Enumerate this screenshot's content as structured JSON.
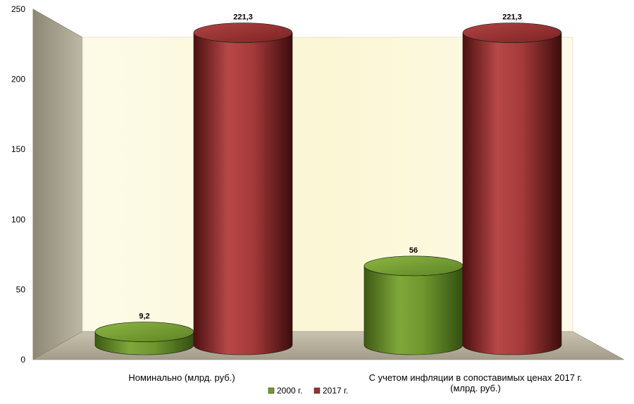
{
  "chart_data": {
    "type": "bar",
    "style": "3d-cylinder",
    "categories": [
      "Номинально (млрд. руб.)",
      [
        "С учетом инфляции в сопоставимых ценах 2017 г.",
        "(млрд. руб.)"
      ]
    ],
    "series": [
      {
        "name": "2000 г.",
        "values": [
          9.2,
          56
        ],
        "labels": [
          "9,2",
          "56"
        ],
        "color": "#6f9a2e"
      },
      {
        "name": "2017 г.",
        "values": [
          221.3,
          221.3
        ],
        "labels": [
          "221,3",
          "221,3"
        ],
        "color": "#9e2f2f"
      }
    ],
    "ylim": [
      0,
      250
    ],
    "yticks": [
      "0",
      "50",
      "100",
      "150",
      "200",
      "250"
    ],
    "legend_position": "bottom",
    "grid": false,
    "colors": {
      "back_wall": "#fbf8e0",
      "side_wall": "#a6a08e",
      "floor": "#b7b09e"
    }
  }
}
